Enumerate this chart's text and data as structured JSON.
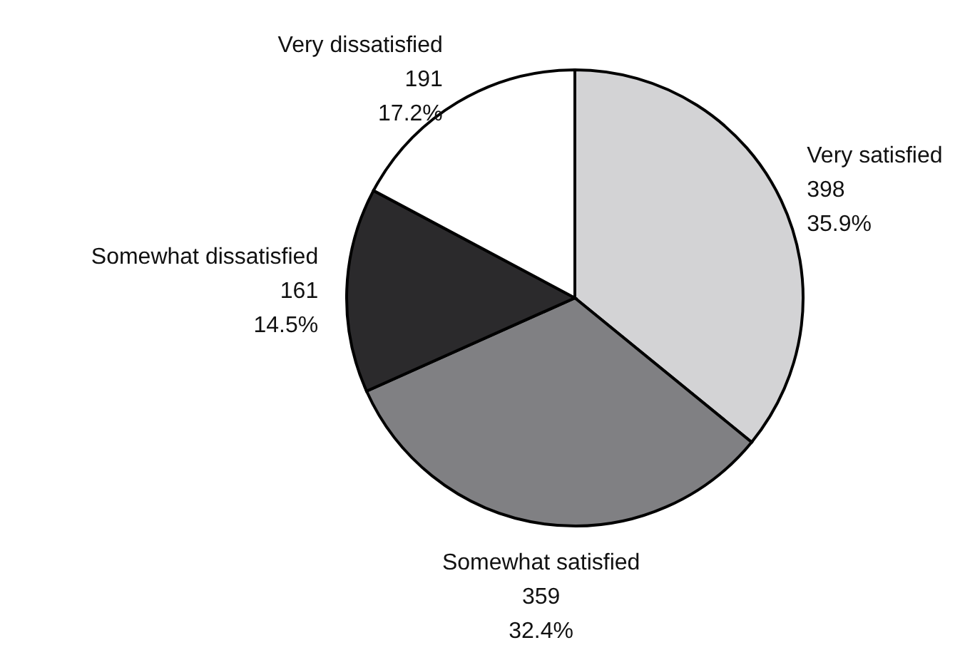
{
  "chart_data": {
    "type": "pie",
    "categories": [
      "Very satisfied",
      "Somewhat satisfied",
      "Somewhat dissatisfied",
      "Very dissatisfied"
    ],
    "values": [
      35.9,
      32.4,
      14.5,
      17.2
    ],
    "colors": [
      "#d3d3d5",
      "#808083",
      "#2b2a2c",
      "#ffffff"
    ],
    "value_labels": [
      "398\n35.9%",
      "359\n32.4%",
      "161\n14.5%",
      "191\n17.2%"
    ],
    "legend": false
  }
}
